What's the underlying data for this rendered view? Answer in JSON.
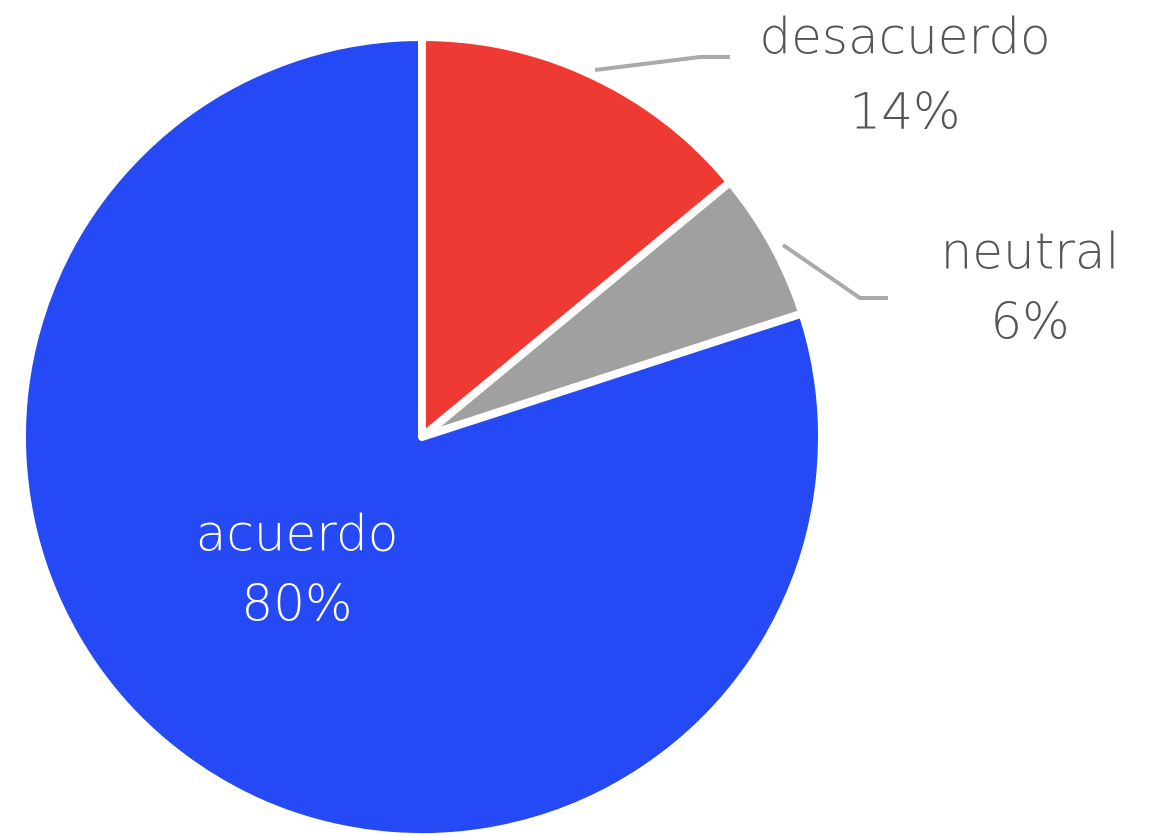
{
  "chart_data": {
    "type": "pie",
    "categories": [
      "desacuerdo",
      "neutral",
      "acuerdo"
    ],
    "values": [
      14,
      6,
      80
    ],
    "value_labels": [
      "14%",
      "6%",
      "80%"
    ],
    "colors": [
      "#ee3a33",
      "#a0a0a0",
      "#2449f5"
    ]
  }
}
